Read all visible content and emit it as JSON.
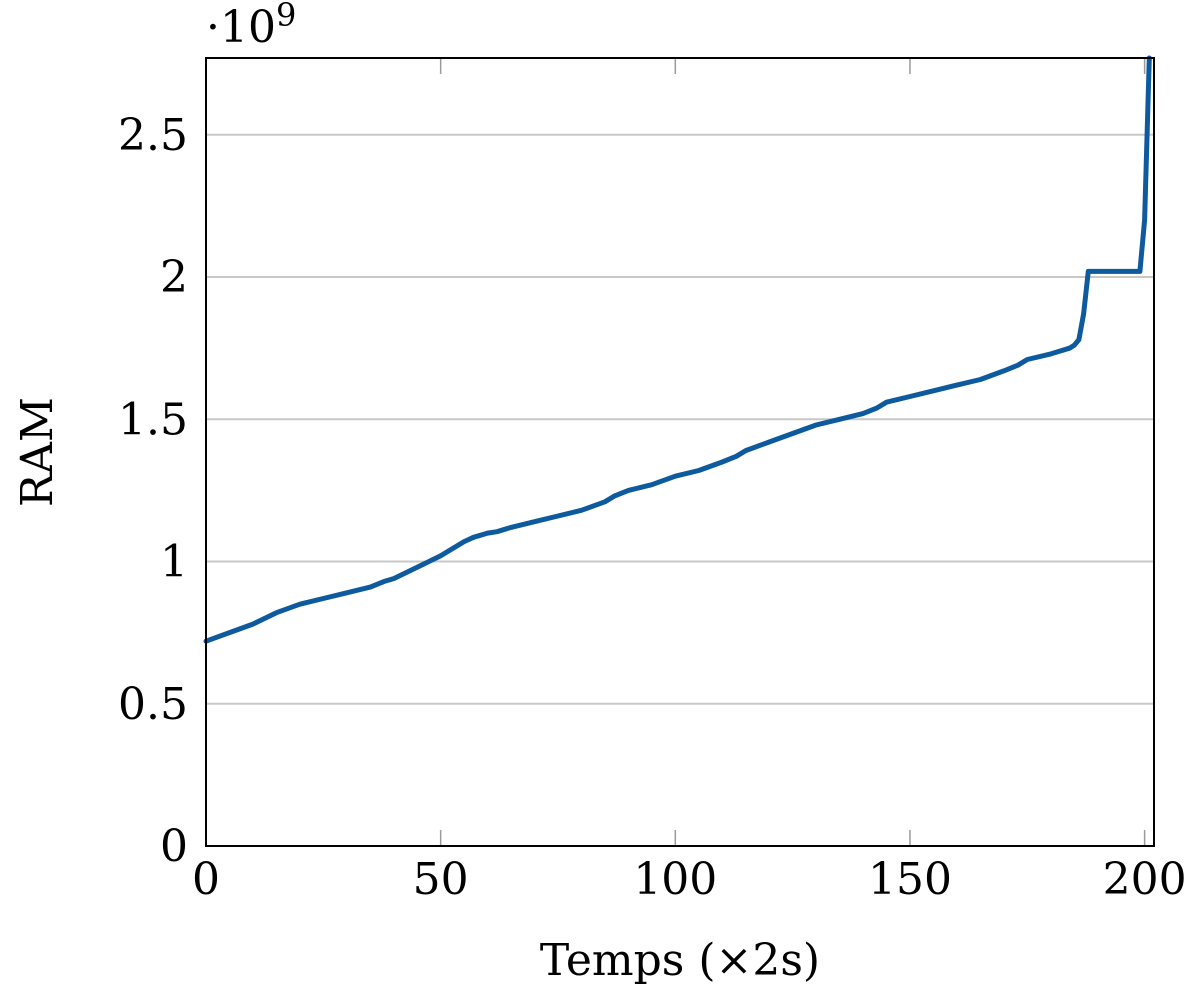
{
  "chart_data": {
    "type": "line",
    "title": "",
    "xlabel": "Temps (×2s)",
    "ylabel": "RAM",
    "y_multiplier": "·10",
    "y_multiplier_exp": "9",
    "xlim": [
      0,
      202
    ],
    "ylim": [
      0,
      2.77
    ],
    "x_ticks": [
      0,
      50,
      100,
      150,
      200
    ],
    "x_tick_labels": [
      "0",
      "50",
      "100",
      "150",
      "200"
    ],
    "y_ticks": [
      0,
      0.5,
      1,
      1.5,
      2,
      2.5
    ],
    "y_tick_labels": [
      "0",
      "0.5",
      "1",
      "1.5",
      "2",
      "2.5"
    ],
    "grid": "horizontal",
    "series": [
      {
        "color": "#0e5a9e",
        "x": [
          0,
          5,
          10,
          15,
          20,
          25,
          30,
          35,
          38,
          40,
          45,
          50,
          52,
          55,
          57,
          60,
          62,
          65,
          70,
          75,
          80,
          85,
          87,
          90,
          95,
          100,
          105,
          110,
          113,
          115,
          120,
          125,
          130,
          135,
          140,
          143,
          145,
          150,
          155,
          160,
          165,
          170,
          173,
          175,
          180,
          184,
          185,
          186,
          187,
          188,
          190,
          195,
          199,
          200,
          201
        ],
        "y": [
          0.72,
          0.75,
          0.78,
          0.82,
          0.85,
          0.87,
          0.89,
          0.91,
          0.93,
          0.94,
          0.98,
          1.02,
          1.04,
          1.07,
          1.085,
          1.1,
          1.105,
          1.12,
          1.14,
          1.16,
          1.18,
          1.21,
          1.23,
          1.25,
          1.27,
          1.3,
          1.32,
          1.35,
          1.37,
          1.39,
          1.42,
          1.45,
          1.48,
          1.5,
          1.52,
          1.54,
          1.56,
          1.58,
          1.6,
          1.62,
          1.64,
          1.67,
          1.69,
          1.71,
          1.73,
          1.75,
          1.76,
          1.78,
          1.87,
          2.02,
          2.02,
          2.02,
          2.02,
          2.2,
          2.77
        ]
      }
    ]
  }
}
